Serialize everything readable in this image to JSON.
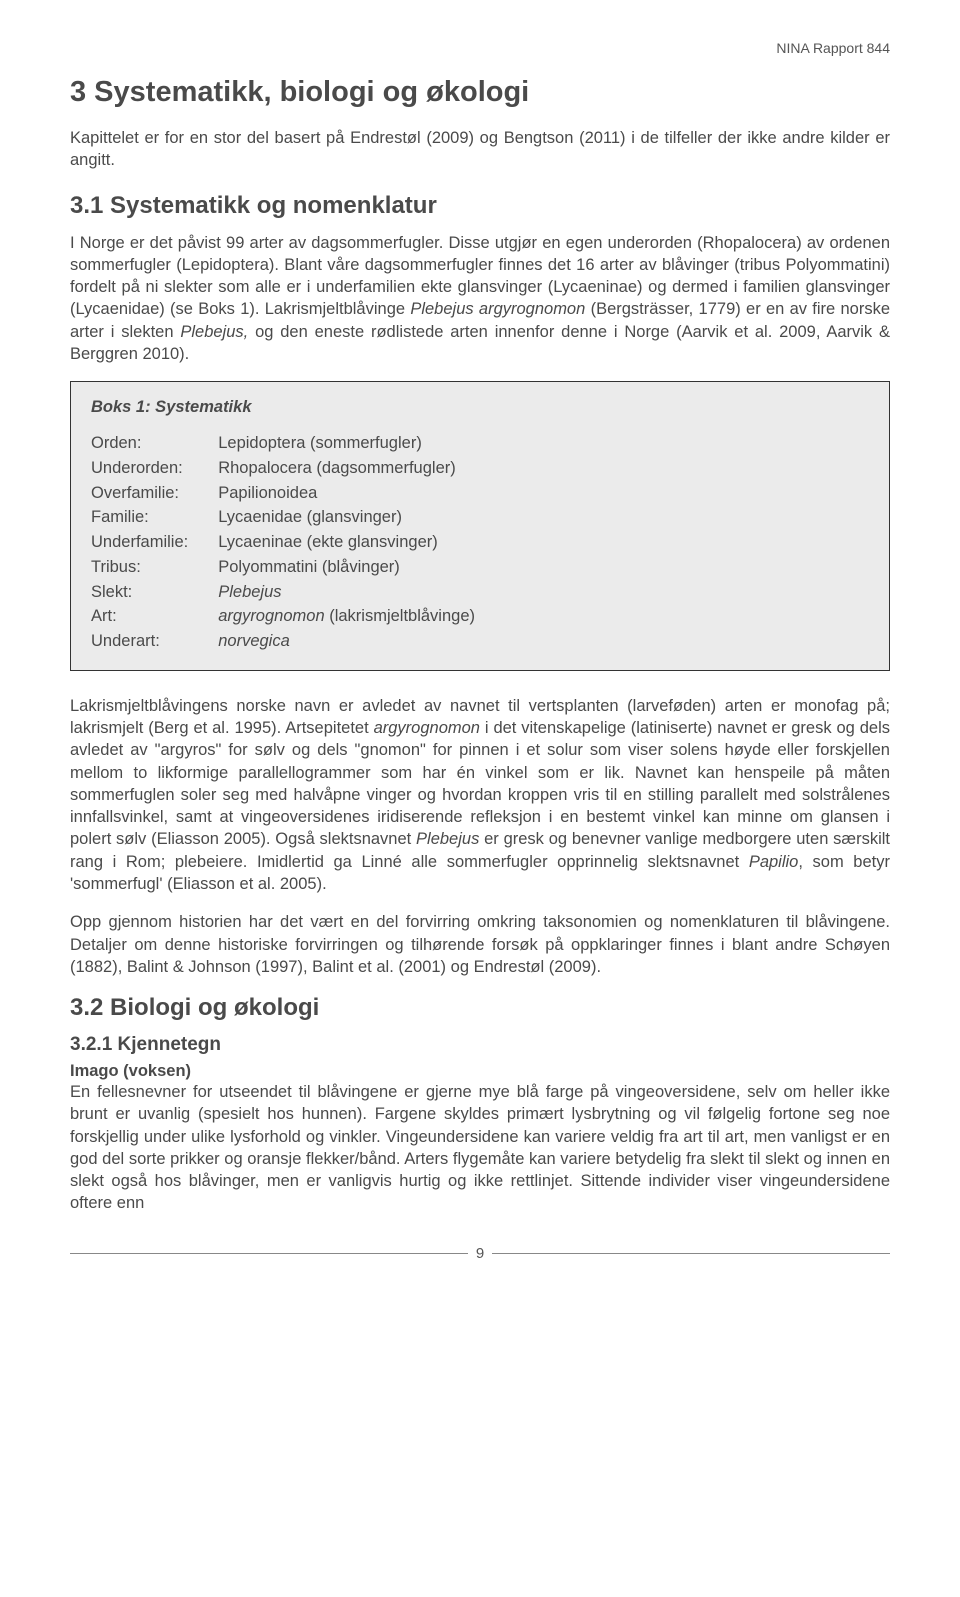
{
  "header": {
    "report_label": "NINA Rapport 844"
  },
  "h1": "3 Systematikk, biologi og økologi",
  "intro": "Kapittelet er for en stor del basert på Endrestøl (2009) og Bengtson (2011) i de tilfeller der ikke andre kilder er angitt.",
  "h2_31": "3.1 Systematikk og nomenklatur",
  "para_31_pre": "I Norge er det påvist 99 arter av dagsommerfugler. Disse utgjør en egen underorden (Rhopalocera) av ordenen sommerfugler (Lepidoptera). Blant våre dagsommerfugler finnes det 16 arter av blåvinger (tribus Polyommatini) fordelt på ni slekter som alle er i underfamilien ekte glansvinger (Lycaeninae) og dermed i familien glansvinger (Lycaenidae) (se Boks 1). Lakrismjeltblåvinge ",
  "para_31_it1": "Plebejus argyrognomon",
  "para_31_mid": " (Bergsträsser, 1779) er en av fire norske arter i slekten ",
  "para_31_it2": "Plebejus,",
  "para_31_end": " og den eneste rødlistede arten innenfor denne i Norge (Aarvik et al. 2009, Aarvik & Berggren 2010).",
  "box": {
    "title": "Boks 1: Systematikk",
    "rows": [
      {
        "key": "Orden:",
        "val": "Lepidoptera (sommerfugler)",
        "it": false
      },
      {
        "key": "Underorden:",
        "val": "Rhopalocera (dagsommerfugler)",
        "it": false
      },
      {
        "key": "Overfamilie:",
        "val": "Papilionoidea",
        "it": false
      },
      {
        "key": "Familie:",
        "val": "Lycaenidae (glansvinger)",
        "it": false
      },
      {
        "key": "Underfamilie:",
        "val": "Lycaeninae (ekte glansvinger)",
        "it": false
      },
      {
        "key": "Tribus:",
        "val": "Polyommatini (blåvinger)",
        "it": false
      },
      {
        "key": "Slekt:",
        "val": "Plebejus",
        "it": true
      },
      {
        "key": "Art:",
        "val_it": "argyrognomon",
        "val_plain": " (lakrismjeltblåvinge)"
      },
      {
        "key": "Underart:",
        "val": "norvegica",
        "it": true
      }
    ]
  },
  "para_name_pre": "Lakrismjeltblåvingens norske navn er avledet av navnet til vertsplanten (larveføden) arten er monofag på; lakrismjelt (Berg et al. 1995). Artsepitetet ",
  "para_name_it1": "argyrognomon",
  "para_name_mid1": " i det vitenskapelige (latiniserte) navnet er gresk og dels avledet av \"argyros\" for sølv og dels \"gnomon\" for pinnen i et solur som viser solens høyde eller forskjellen mellom to likformige parallellogrammer som har én vinkel som er lik. Navnet kan henspeile på måten sommerfuglen soler seg med halvåpne vinger og hvordan kroppen vris til en stilling parallelt med solstrålenes innfallsvinkel, samt at vingeoversidenes iridiserende refleksjon i en bestemt vinkel kan minne om glansen i polert sølv (Eliasson 2005). Også slektsnavnet ",
  "para_name_it2": "Plebejus",
  "para_name_mid2": " er gresk og benevner vanlige medborgere uten særskilt rang i Rom; plebeiere. Imidlertid ga Linné alle sommerfugler opprinnelig slektsnavnet ",
  "para_name_it3": "Papilio",
  "para_name_end": ", som betyr 'sommerfugl' (Eliasson et al. 2005).",
  "para_hist": "Opp gjennom historien har det vært en del forvirring omkring taksonomien og nomenklaturen til blåvingene. Detaljer om denne historiske forvirringen og tilhørende forsøk på oppklaringer finnes i blant andre Schøyen (1882), Balint & Johnson (1997), Balint et al. (2001) og Endrestøl (2009).",
  "h2_32": "3.2 Biologi og økologi",
  "h3_321": "3.2.1 Kjennetegn",
  "subhead_imago": "Imago (voksen)",
  "para_imago": "En fellesnevner for utseendet til blåvingene er gjerne mye blå farge på vingeoversidene, selv om heller ikke brunt er uvanlig (spesielt hos hunnen). Fargene skyldes primært lysbrytning og vil følgelig fortone seg noe forskjellig under ulike lysforhold og vinkler. Vingeundersidene kan variere veldig fra art til art, men vanligst er en god del sorte prikker og oransje flekker/bånd. Arters flygemåte kan variere betydelig fra slekt til slekt og innen en slekt også hos blåvinger, men er vanligvis hurtig og ikke rettlinjet. Sittende individer viser vingeundersidene oftere enn",
  "page_number": "9"
}
